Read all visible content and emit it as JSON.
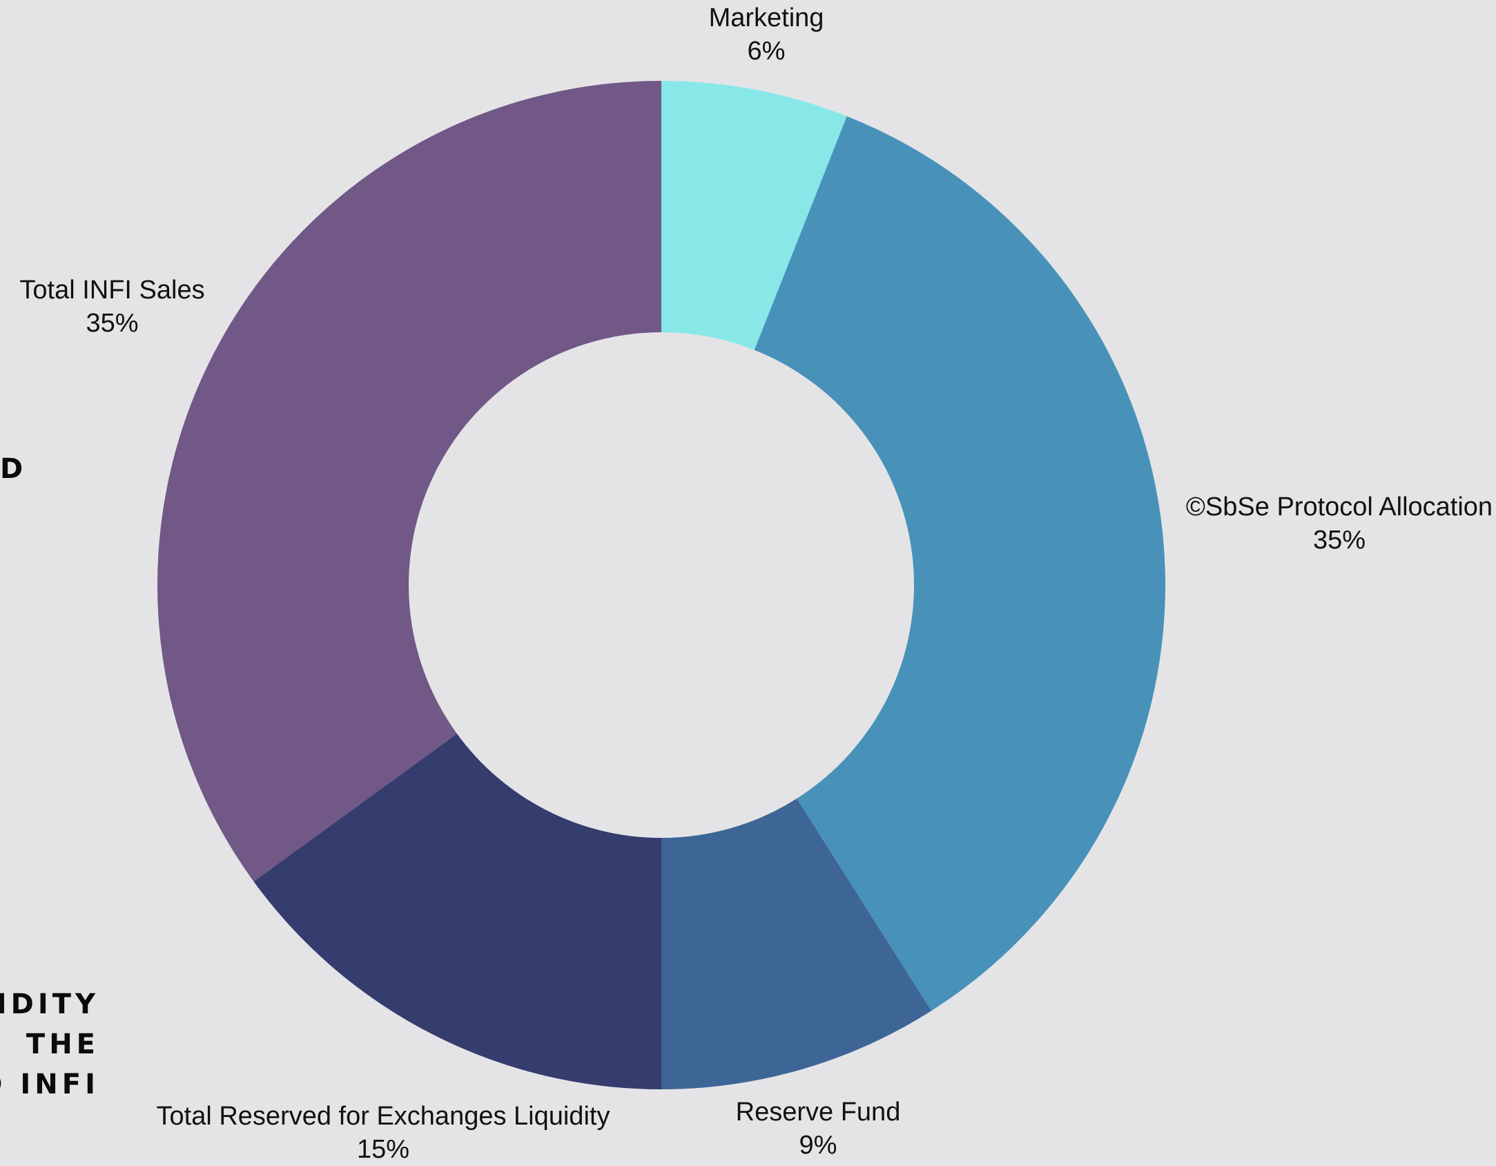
{
  "chart_data": {
    "type": "pie",
    "donut": true,
    "start": "top",
    "direction": "clockwise",
    "categories": [
      "Marketing",
      "©SbSe Protocol Allocation",
      "Reserve Fund",
      "Total Reserved for Exchanges Liquidity",
      "Total INFI Sales"
    ],
    "values": [
      6,
      35,
      9,
      15,
      35
    ],
    "value_labels": [
      "6%",
      "35%",
      "9%",
      "15%",
      "35%"
    ],
    "colors": [
      "#88e8e8",
      "#4892b9",
      "#3d6696",
      "#353d6e",
      "#715886"
    ]
  },
  "background": "#e4e4e7",
  "side_text": {
    "line1": "D",
    "line2": "IDITY",
    "line3": "THE",
    "line4": "D INFI"
  }
}
